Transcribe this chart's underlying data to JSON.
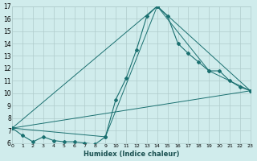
{
  "background_color": "#d0ecec",
  "grid_color": "#b0cccc",
  "line_color": "#1a7070",
  "xlabel": "Humidex (Indice chaleur)",
  "xlim": [
    0,
    23
  ],
  "ylim": [
    6,
    17
  ],
  "series_main": {
    "x": [
      0,
      1,
      2,
      3,
      4,
      5,
      6,
      7,
      8,
      9,
      10,
      11,
      12,
      13,
      14,
      15,
      16,
      17,
      18,
      19,
      20,
      21,
      22,
      23
    ],
    "y": [
      7.2,
      6.6,
      6.1,
      6.5,
      6.2,
      6.1,
      6.1,
      6.0,
      5.9,
      6.5,
      9.5,
      11.2,
      13.5,
      16.2,
      17.0,
      16.2,
      14.0,
      13.2,
      12.5,
      11.8,
      11.8,
      11.0,
      10.5,
      10.2
    ]
  },
  "series_line1": {
    "x": [
      0,
      9,
      14,
      23
    ],
    "y": [
      7.2,
      6.5,
      17.0,
      10.2
    ]
  },
  "series_line2": {
    "x": [
      0,
      14,
      19,
      23
    ],
    "y": [
      7.2,
      17.0,
      11.8,
      10.2
    ]
  },
  "series_line3": {
    "x": [
      0,
      23
    ],
    "y": [
      7.2,
      10.2
    ]
  },
  "yticks": [
    6,
    7,
    8,
    9,
    10,
    11,
    12,
    13,
    14,
    15,
    16,
    17
  ],
  "xticks": [
    0,
    1,
    2,
    3,
    4,
    5,
    6,
    7,
    8,
    9,
    10,
    11,
    12,
    13,
    14,
    15,
    16,
    17,
    18,
    19,
    20,
    21,
    22,
    23
  ]
}
